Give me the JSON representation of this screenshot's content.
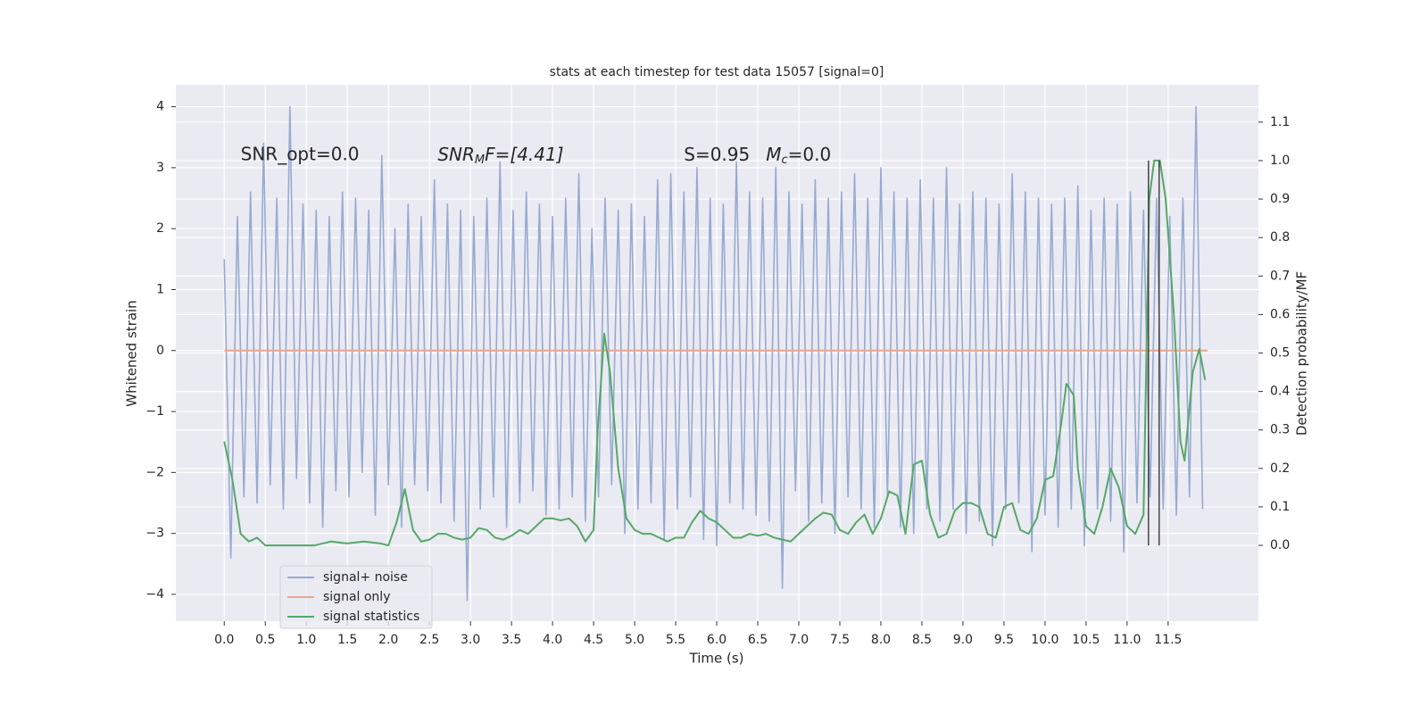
{
  "chart_data": {
    "type": "line",
    "title": "stats at each timestep for test data 15057 [signal=0]",
    "x_label": "Time (s)",
    "y_label": "Whitened strain",
    "y2_label": "Detection probability/MF",
    "annotations": [
      {
        "text": "SNR_opt=0.0",
        "x": 0.2,
        "y": 3.2
      },
      {
        "main": "SNR",
        "sub": "M",
        "rest": "F=[4.41]",
        "x": 2.6,
        "y": 3.2
      },
      {
        "text": "S=0.95",
        "x": 5.6,
        "y": 3.2
      },
      {
        "main": "M",
        "sub": "c",
        "rest": "=0.0",
        "x": 6.6,
        "y": 3.2
      }
    ],
    "xlim": [
      -0.59,
      12.6
    ],
    "ylim": [
      -4.44,
      4.36
    ],
    "y2lim": [
      -0.197,
      1.197
    ],
    "xticks": [
      {
        "value": 0,
        "label": "0.0"
      },
      0.5,
      {
        "value": 1,
        "label": "1.0"
      },
      1.5,
      {
        "value": 2,
        "label": "2.0"
      },
      2.5,
      {
        "value": 3,
        "label": "3.0"
      },
      3.5,
      {
        "value": 4,
        "label": "4.0"
      },
      4.5,
      {
        "value": 5,
        "label": "5.0"
      },
      5.5,
      {
        "value": 6,
        "label": "6.0"
      },
      6.5,
      {
        "value": 7,
        "label": "7.0"
      },
      7.5,
      {
        "value": 8,
        "label": "8.0"
      },
      8.5,
      {
        "value": 9,
        "label": "9.0"
      },
      9.5,
      {
        "value": 10,
        "label": "10.0"
      },
      10.5,
      {
        "value": 11,
        "label": "11.0"
      },
      11.5
    ],
    "yticks": [
      {
        "value": -4,
        "label": "−4"
      },
      {
        "value": -3,
        "label": "−3"
      },
      {
        "value": -2,
        "label": "−2"
      },
      {
        "value": -1,
        "label": "−1"
      },
      0,
      1,
      2,
      3,
      4
    ],
    "y2ticks": [
      {
        "value": 0,
        "label": "0.0"
      },
      0.1,
      0.2,
      0.3,
      0.4,
      0.5,
      0.6,
      0.7,
      0.8,
      0.9,
      {
        "value": 1,
        "label": "1.0"
      },
      1.1
    ],
    "grid": true,
    "legend_loc": "lower left",
    "series": [
      {
        "name": "signal+ noise",
        "color": "#97aad1",
        "axis": "y",
        "x": [
          0,
          0.08,
          0.16,
          0.24,
          0.32,
          0.4,
          0.48,
          0.56,
          0.64,
          0.72,
          0.8,
          0.88,
          0.96,
          1.04,
          1.12,
          1.2,
          1.28,
          1.36,
          1.44,
          1.52,
          1.6,
          1.68,
          1.76,
          1.84,
          1.92,
          2.0,
          2.08,
          2.16,
          2.24,
          2.32,
          2.4,
          2.48,
          2.56,
          2.64,
          2.72,
          2.8,
          2.88,
          2.96,
          3.04,
          3.12,
          3.2,
          3.28,
          3.36,
          3.44,
          3.52,
          3.6,
          3.68,
          3.76,
          3.84,
          3.92,
          4.0,
          4.08,
          4.16,
          4.24,
          4.32,
          4.4,
          4.48,
          4.56,
          4.64,
          4.72,
          4.8,
          4.88,
          4.96,
          5.04,
          5.12,
          5.2,
          5.28,
          5.36,
          5.44,
          5.52,
          5.6,
          5.68,
          5.76,
          5.84,
          5.92,
          6.0,
          6.08,
          6.16,
          6.24,
          6.32,
          6.4,
          6.48,
          6.56,
          6.64,
          6.72,
          6.8,
          6.88,
          6.96,
          7.04,
          7.12,
          7.2,
          7.28,
          7.36,
          7.44,
          7.52,
          7.6,
          7.68,
          7.76,
          7.84,
          7.92,
          8.0,
          8.08,
          8.16,
          8.24,
          8.32,
          8.4,
          8.48,
          8.56,
          8.64,
          8.72,
          8.8,
          8.88,
          8.96,
          9.04,
          9.12,
          9.2,
          9.28,
          9.36,
          9.44,
          9.52,
          9.6,
          9.68,
          9.76,
          9.84,
          9.92,
          10.0,
          10.08,
          10.16,
          10.24,
          10.32,
          10.4,
          10.48,
          10.56,
          10.64,
          10.72,
          10.8,
          10.88,
          10.96,
          11.04,
          11.12,
          11.2,
          11.28,
          11.36,
          11.44,
          11.52,
          11.6,
          11.68,
          11.76,
          11.84,
          11.92
        ],
        "values": [
          1.5,
          -3.4,
          2.2,
          -2.4,
          2.6,
          -2.5,
          3.4,
          -2.2,
          2.5,
          -2.6,
          4.0,
          -2.1,
          2.4,
          -2.5,
          2.3,
          -2.9,
          2.2,
          -2.3,
          2.6,
          -2.4,
          2.5,
          -2.0,
          2.3,
          -2.7,
          3.2,
          -2.2,
          2.0,
          -2.9,
          2.4,
          -2.2,
          2.2,
          -2.3,
          2.8,
          -2.5,
          2.4,
          -2.8,
          2.3,
          -4.1,
          2.2,
          -2.6,
          2.5,
          -2.4,
          3.1,
          -2.9,
          2.3,
          -2.5,
          2.6,
          -2.3,
          2.4,
          -2.7,
          2.2,
          -2.6,
          2.5,
          -2.4,
          2.9,
          -2.8,
          2.0,
          -2.4,
          2.5,
          -2.2,
          2.3,
          -3.0,
          2.4,
          -2.6,
          2.2,
          -2.5,
          2.8,
          -3.1,
          2.9,
          -2.6,
          2.6,
          -2.4,
          3.0,
          -3.1,
          2.5,
          -3.2,
          2.4,
          -2.5,
          3.1,
          -2.6,
          2.6,
          -2.7,
          2.5,
          -2.8,
          3.0,
          -3.9,
          2.6,
          -2.3,
          2.4,
          -2.8,
          2.8,
          -2.5,
          2.5,
          -3.0,
          2.6,
          -2.4,
          2.9,
          -2.6,
          2.5,
          -2.9,
          3.0,
          -2.4,
          2.6,
          -2.9,
          2.5,
          -3.0,
          2.8,
          -2.6,
          2.5,
          -2.8,
          3.0,
          -2.6,
          2.4,
          -3.0,
          2.6,
          -2.8,
          2.5,
          -3.2,
          2.4,
          -2.6,
          2.9,
          -2.5,
          2.6,
          -3.3,
          2.5,
          -2.7,
          2.4,
          -2.9,
          2.5,
          -2.6,
          2.7,
          -3.2,
          2.3,
          -2.6,
          2.5,
          -2.8,
          2.4,
          -3.3,
          2.6,
          -2.5,
          2.3,
          -2.4,
          2.5,
          -2.6,
          2.2,
          -2.7,
          2.5,
          -2.4,
          4.0,
          -2.6
        ]
      },
      {
        "name": "signal only",
        "color": "#e8a98c",
        "axis": "y",
        "x": [
          0,
          11.98
        ],
        "values": [
          0,
          0
        ]
      },
      {
        "name": "signal statistics",
        "color": "#55a868",
        "axis": "y2",
        "x": [
          0,
          0.1,
          0.2,
          0.3,
          0.4,
          0.5,
          0.7,
          0.9,
          1.1,
          1.3,
          1.5,
          1.7,
          1.9,
          2.0,
          2.1,
          2.2,
          2.3,
          2.4,
          2.5,
          2.6,
          2.7,
          2.8,
          2.9,
          3.0,
          3.1,
          3.2,
          3.3,
          3.4,
          3.5,
          3.6,
          3.7,
          3.8,
          3.9,
          4.0,
          4.1,
          4.2,
          4.3,
          4.4,
          4.5,
          4.55,
          4.63,
          4.7,
          4.8,
          4.9,
          5.0,
          5.1,
          5.2,
          5.3,
          5.4,
          5.5,
          5.6,
          5.7,
          5.8,
          5.9,
          6.0,
          6.1,
          6.2,
          6.3,
          6.4,
          6.5,
          6.6,
          6.7,
          6.8,
          6.9,
          7.0,
          7.1,
          7.2,
          7.3,
          7.4,
          7.5,
          7.6,
          7.7,
          7.8,
          7.9,
          8.0,
          8.1,
          8.2,
          8.3,
          8.4,
          8.5,
          8.6,
          8.7,
          8.8,
          8.9,
          9.0,
          9.1,
          9.2,
          9.3,
          9.4,
          9.5,
          9.6,
          9.7,
          9.8,
          9.9,
          10.0,
          10.1,
          10.2,
          10.26,
          10.35,
          10.4,
          10.5,
          10.6,
          10.7,
          10.8,
          10.9,
          11.0,
          11.1,
          11.2,
          11.27,
          11.33,
          11.4,
          11.47,
          11.57,
          11.65,
          11.7,
          11.8,
          11.88,
          11.95
        ],
        "values": [
          0.27,
          0.17,
          0.03,
          0.01,
          0.02,
          0.0,
          0.0,
          0.0,
          0.0,
          0.01,
          0.005,
          0.01,
          0.005,
          0.0,
          0.06,
          0.146,
          0.04,
          0.01,
          0.015,
          0.03,
          0.03,
          0.02,
          0.015,
          0.02,
          0.045,
          0.04,
          0.02,
          0.015,
          0.025,
          0.04,
          0.03,
          0.05,
          0.07,
          0.07,
          0.065,
          0.07,
          0.05,
          0.01,
          0.04,
          0.3,
          0.55,
          0.45,
          0.2,
          0.07,
          0.04,
          0.03,
          0.03,
          0.02,
          0.01,
          0.02,
          0.02,
          0.06,
          0.09,
          0.07,
          0.06,
          0.04,
          0.02,
          0.02,
          0.03,
          0.025,
          0.03,
          0.02,
          0.015,
          0.01,
          0.03,
          0.05,
          0.07,
          0.085,
          0.08,
          0.04,
          0.03,
          0.06,
          0.08,
          0.03,
          0.07,
          0.14,
          0.13,
          0.03,
          0.21,
          0.22,
          0.08,
          0.02,
          0.03,
          0.09,
          0.11,
          0.11,
          0.1,
          0.03,
          0.02,
          0.1,
          0.11,
          0.04,
          0.03,
          0.07,
          0.17,
          0.18,
          0.32,
          0.42,
          0.39,
          0.2,
          0.05,
          0.03,
          0.1,
          0.2,
          0.15,
          0.05,
          0.03,
          0.08,
          0.9,
          1.0,
          1.0,
          0.9,
          0.6,
          0.27,
          0.22,
          0.45,
          0.51,
          0.43
        ]
      }
    ],
    "vlines": {
      "color": "#444444",
      "axis": "y2",
      "x": [
        11.26,
        11.39
      ],
      "y2": [
        0,
        1.0
      ]
    }
  }
}
